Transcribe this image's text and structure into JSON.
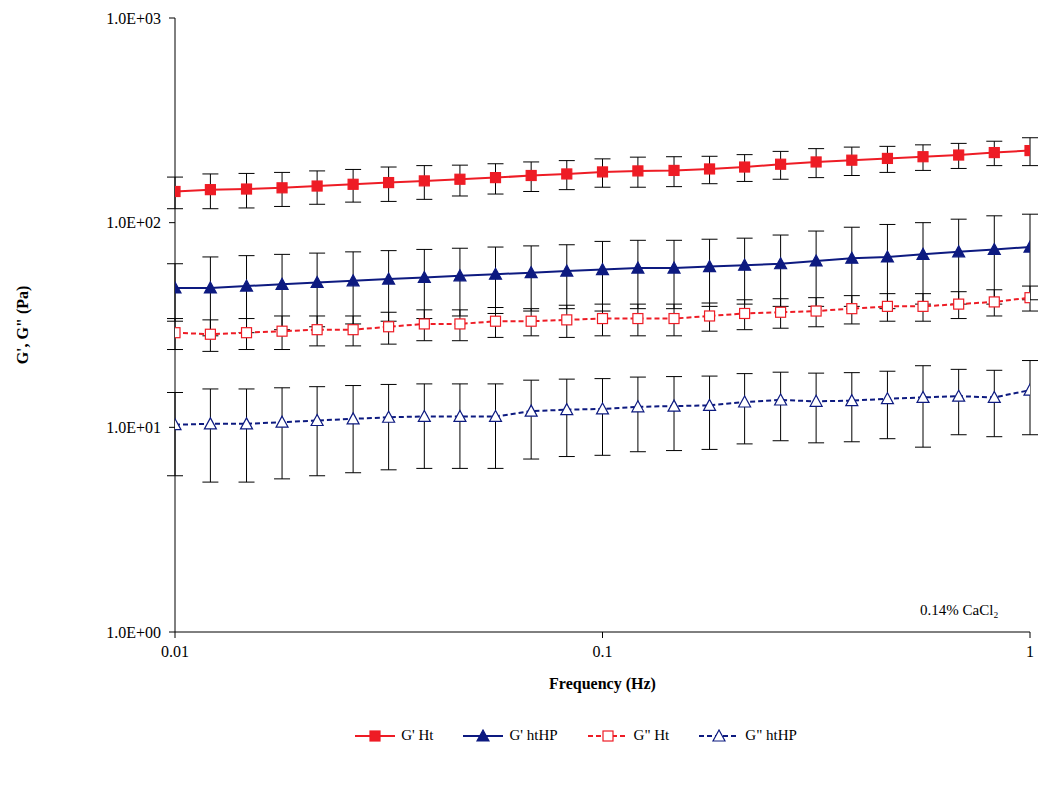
{
  "chart_data": {
    "type": "line",
    "x_label": "Frequency (Hz)",
    "y_label": "G', G\" (Pa)",
    "annotation": "0.14% CaCl₂",
    "log": true,
    "grid": false,
    "legend": "bottom",
    "xlim": [
      0.01,
      1
    ],
    "xticks": [
      0.01,
      0.1,
      1
    ],
    "ylim": [
      1,
      1000
    ],
    "yticks": [
      {
        "value": 1,
        "label": "1.0E+00"
      },
      {
        "value": 10,
        "label": "1.0E+01"
      },
      {
        "value": 100,
        "label": "1.0E+02"
      },
      {
        "value": 1000,
        "label": "1.0E+03"
      }
    ],
    "x": [
      0.01,
      0.0121,
      0.0147,
      0.0178,
      0.0215,
      0.0261,
      0.0316,
      0.0383,
      0.0464,
      0.0562,
      0.0681,
      0.0825,
      0.1,
      0.121,
      0.147,
      0.178,
      0.215,
      0.261,
      0.316,
      0.383,
      0.464,
      0.562,
      0.681,
      0.825,
      1
    ],
    "series": [
      {
        "name": "G' Ht",
        "color": "#ee1c25",
        "marker": "square",
        "line_style": "solid",
        "values": [
          142,
          145,
          146,
          148,
          151,
          154,
          157,
          160,
          163,
          166,
          170,
          173,
          177,
          179,
          180,
          183,
          187,
          193,
          198,
          202,
          206,
          210,
          214,
          220,
          225
        ],
        "errors": [
          25,
          28,
          28,
          28,
          28,
          28,
          30,
          30,
          28,
          28,
          28,
          28,
          28,
          30,
          30,
          28,
          28,
          30,
          32,
          32,
          30,
          30,
          30,
          30,
          35
        ]
      },
      {
        "name": "G' htHP",
        "color": "#0d1a80",
        "marker": "triangle",
        "line_style": "solid",
        "values": [
          48,
          48,
          49,
          50,
          51,
          52,
          53,
          54,
          55,
          56,
          57,
          58,
          59,
          60,
          60,
          61,
          62,
          63,
          65,
          67,
          68,
          70,
          72,
          74,
          76
        ],
        "errors": [
          15,
          20,
          20,
          20,
          20,
          20,
          20,
          20,
          20,
          20,
          20,
          20,
          22,
          22,
          22,
          22,
          22,
          24,
          26,
          28,
          30,
          30,
          32,
          34,
          34
        ]
      },
      {
        "name": "G\" Ht",
        "color": "#ee1c25",
        "marker": "open_square",
        "line_style": "dashed",
        "values": [
          29,
          28.5,
          29,
          29.5,
          30,
          30,
          31,
          32,
          32,
          33,
          33,
          33.5,
          34,
          34,
          34,
          35,
          36,
          36.5,
          37,
          38,
          39,
          39,
          40,
          41,
          43
        ],
        "errors": [
          5,
          5,
          5,
          5.5,
          5,
          5,
          5.5,
          5.5,
          5.5,
          5.5,
          5,
          6,
          6,
          6,
          6,
          5.5,
          6,
          6,
          6,
          6,
          6,
          6,
          6,
          6,
          6
        ]
      },
      {
        "name": "G\" htHP",
        "color": "#0d1a80",
        "marker": "open_triangle",
        "line_style": "dashed",
        "values": [
          10.3,
          10.4,
          10.4,
          10.6,
          10.8,
          11,
          11.2,
          11.3,
          11.3,
          11.3,
          12,
          12.2,
          12.3,
          12.6,
          12.7,
          12.8,
          13.3,
          13.6,
          13.4,
          13.5,
          13.8,
          14,
          14.2,
          14,
          15.2
        ],
        "errors": [
          4.5,
          5,
          5,
          5,
          5,
          5,
          5,
          5,
          5,
          5,
          5,
          5,
          5,
          5,
          5,
          5,
          5,
          5,
          5,
          5,
          5,
          6,
          5,
          5,
          6
        ]
      }
    ]
  }
}
